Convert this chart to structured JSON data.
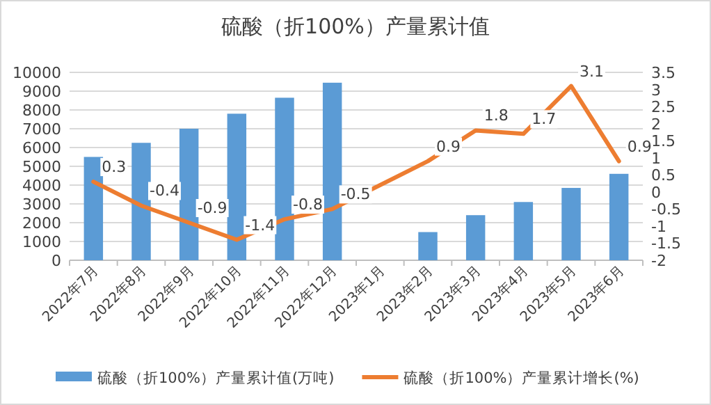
{
  "chart_data": {
    "type": "bar",
    "title": "硫酸（折100%）产量累计值",
    "categories": [
      "2022年7月",
      "2022年8月",
      "2022年9月",
      "2022年10月",
      "2022年11月",
      "2022年12月",
      "2023年1月",
      "2023年2月",
      "2023年3月",
      "2023年4月",
      "2023年5月",
      "2023年6月"
    ],
    "series": [
      {
        "name": "硫酸（折100%）产量累计值(万吨)",
        "color": "#5b9bd5",
        "values": [
          5500,
          6250,
          7000,
          7800,
          8650,
          9450,
          null,
          1500,
          2400,
          3100,
          3850,
          4600
        ]
      },
      {
        "name": "硫酸（折100%）产量累计增长(%)",
        "type": "line",
        "axis": "y2",
        "color": "#ed7d31",
        "values": [
          0.3,
          -0.4,
          -0.9,
          -1.4,
          -0.8,
          -0.5,
          null,
          0.9,
          1.8,
          1.7,
          3.1,
          0.9
        ],
        "value_labels": [
          "0.3",
          "-0.4",
          "-0.9",
          "-1.4",
          "-0.8",
          "-0.5",
          null,
          "0.9",
          "1.8",
          "1.7",
          "3.1",
          "0.9"
        ]
      }
    ],
    "ylim": [
      0,
      10000
    ],
    "yticks": [
      0,
      1000,
      2000,
      3000,
      4000,
      5000,
      6000,
      7000,
      8000,
      9000,
      10000
    ],
    "y2lim": [
      -2,
      3.5
    ],
    "y2ticks": [
      -2,
      -1.5,
      -1,
      -0.5,
      0,
      0.5,
      1,
      1.5,
      2,
      2.5,
      3,
      3.5
    ],
    "grid": "y",
    "legend": "bottom",
    "marker": "none",
    "line_style": "solid"
  }
}
